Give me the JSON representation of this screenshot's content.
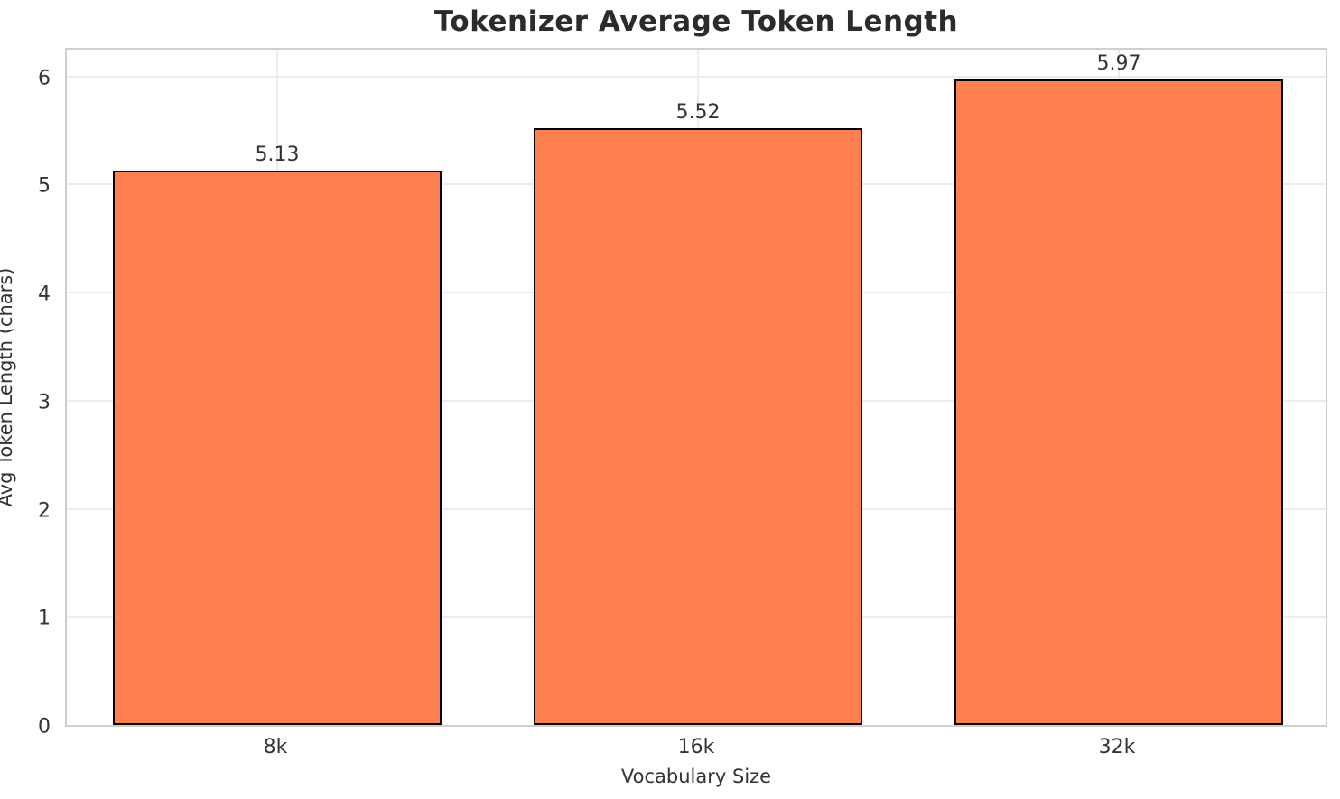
{
  "chart_data": {
    "type": "bar",
    "title": "Tokenizer Average Token Length",
    "xlabel": "Vocabulary Size",
    "ylabel": "Avg Token Length (chars)",
    "categories": [
      "8k",
      "16k",
      "32k"
    ],
    "values": [
      5.13,
      5.52,
      5.97
    ],
    "value_labels": [
      "5.13",
      "5.52",
      "5.97"
    ],
    "ylim": [
      0,
      6.28
    ],
    "yticks": [
      0,
      1,
      2,
      3,
      4,
      5,
      6
    ],
    "ytick_labels": [
      "0",
      "1",
      "2",
      "3",
      "4",
      "5",
      "6"
    ],
    "grid": "on",
    "legend": "none",
    "colors": {
      "bar_fill": "#FF7F50",
      "bar_edge": "#000000",
      "grid": "#ececec",
      "spine": "#cfcfcf",
      "title_text": "#2b2b2b",
      "tick_text": "#333333"
    }
  }
}
